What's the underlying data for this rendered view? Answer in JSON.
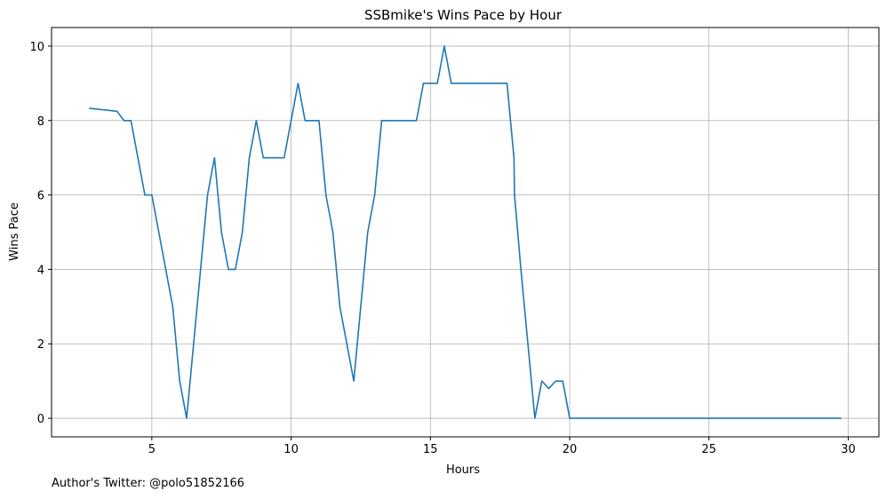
{
  "chart_data": {
    "type": "line",
    "title": "SSBmike's Wins Pace by Hour",
    "xlabel": "Hours",
    "ylabel": "Wins Pace",
    "xlim": [
      1.4,
      31.1
    ],
    "ylim": [
      -0.5,
      10.5
    ],
    "xticks": [
      5,
      10,
      15,
      20,
      25,
      30
    ],
    "yticks": [
      0,
      2,
      4,
      6,
      8,
      10
    ],
    "grid": true,
    "line_color": "#1f77b4",
    "series": [
      {
        "x": [
          2.75,
          3.0,
          3.25,
          3.5,
          3.75,
          4.0,
          4.25,
          4.5,
          4.75,
          5.0,
          5.25,
          5.5,
          5.75,
          6.0,
          6.25,
          6.5,
          6.75,
          7.0,
          7.25,
          7.5,
          7.75,
          8.0,
          8.25,
          8.5,
          8.75,
          9.0,
          9.25,
          9.5,
          9.75,
          10.0,
          10.25,
          10.5,
          10.75,
          11.0,
          11.25,
          11.5,
          11.75,
          12.0,
          12.25,
          12.5,
          12.75,
          13.0,
          13.25,
          13.5,
          13.75,
          14.0,
          14.25,
          14.5,
          14.75,
          15.0,
          15.25,
          15.5,
          15.75,
          16.0,
          16.25,
          16.5,
          16.75,
          17.0,
          17.25,
          17.5,
          17.75,
          18.0,
          18.02,
          18.25,
          18.5,
          18.75,
          19.0,
          19.25,
          19.5,
          19.75,
          20.0,
          20.25,
          21.0,
          22.0,
          23.0,
          24.0,
          25.0,
          26.0,
          27.0,
          28.0,
          29.0,
          29.75
        ],
        "y": [
          8.33,
          8.31,
          8.29,
          8.27,
          8.25,
          8.0,
          8.0,
          7.0,
          6.0,
          6.0,
          5.0,
          4.0,
          3.0,
          1.0,
          0.0,
          2.0,
          4.0,
          6.0,
          7.0,
          5.0,
          4.0,
          4.0,
          5.0,
          7.0,
          8.0,
          7.0,
          7.0,
          7.0,
          7.0,
          8.0,
          9.0,
          8.0,
          8.0,
          8.0,
          6.0,
          5.0,
          3.0,
          2.0,
          1.0,
          3.0,
          5.0,
          6.0,
          8.0,
          8.0,
          8.0,
          8.0,
          8.0,
          8.0,
          9.0,
          9.0,
          9.0,
          10.0,
          9.0,
          9.0,
          9.0,
          9.0,
          9.0,
          9.0,
          9.0,
          9.0,
          9.0,
          7.0,
          6.0,
          4.0,
          2.0,
          0.0,
          1.0,
          0.8,
          1.0,
          1.0,
          0.0,
          0.0,
          0.0,
          0.0,
          0.0,
          0.0,
          0.0,
          0.0,
          0.0,
          0.0,
          0.0,
          0.0
        ]
      }
    ]
  },
  "footer": {
    "note": "Author's Twitter: @polo51852166"
  }
}
